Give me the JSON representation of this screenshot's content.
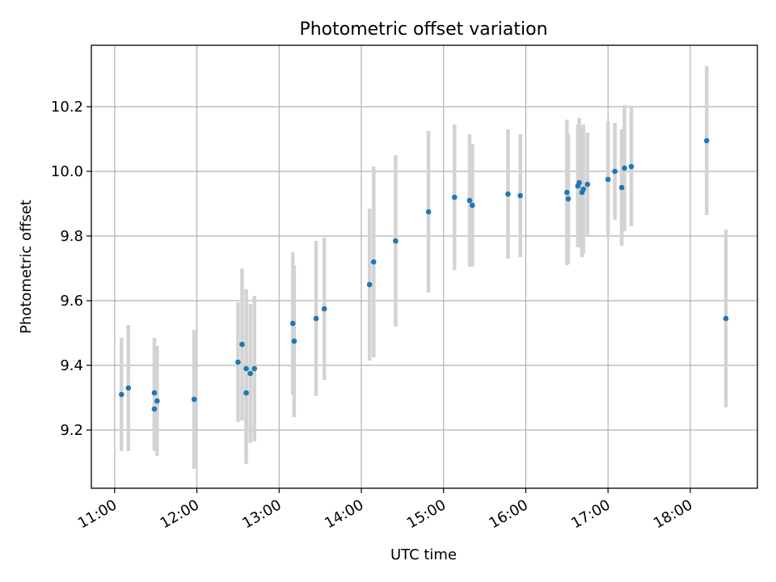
{
  "chart_data": {
    "type": "scatter",
    "title": "Photometric offset variation",
    "xlabel": "UTC time",
    "ylabel": "Photometric offset",
    "x_tick_labels": [
      "11:00",
      "12:00",
      "13:00",
      "14:00",
      "15:00",
      "16:00",
      "17:00",
      "18:00"
    ],
    "y_tick_labels": [
      "9.2",
      "9.4",
      "9.6",
      "9.8",
      "10.0",
      "10.2"
    ],
    "xlim": [
      "10:43",
      "18:49"
    ],
    "ylim": [
      9.02,
      10.39
    ],
    "grid": true,
    "point_color": "#1f77b4",
    "errorbar_color": "#d3d3d3",
    "points": [
      {
        "x": "11:05",
        "y": 9.31,
        "err": 0.175
      },
      {
        "x": "11:10",
        "y": 9.33,
        "err": 0.195
      },
      {
        "x": "11:29",
        "y": 9.315,
        "err": 0.17
      },
      {
        "x": "11:29",
        "y": 9.265,
        "err": 0.13
      },
      {
        "x": "11:31",
        "y": 9.29,
        "err": 0.17
      },
      {
        "x": "11:58",
        "y": 9.295,
        "err": 0.215
      },
      {
        "x": "12:30",
        "y": 9.41,
        "err": 0.185
      },
      {
        "x": "12:33",
        "y": 9.465,
        "err": 0.235
      },
      {
        "x": "12:36",
        "y": 9.39,
        "err": 0.245
      },
      {
        "x": "12:36",
        "y": 9.315,
        "err": 0.22
      },
      {
        "x": "12:39",
        "y": 9.375,
        "err": 0.215
      },
      {
        "x": "12:42",
        "y": 9.39,
        "err": 0.225
      },
      {
        "x": "13:10",
        "y": 9.53,
        "err": 0.22
      },
      {
        "x": "13:11",
        "y": 9.475,
        "err": 0.235
      },
      {
        "x": "13:27",
        "y": 9.545,
        "err": 0.24
      },
      {
        "x": "13:33",
        "y": 9.575,
        "err": 0.22
      },
      {
        "x": "14:06",
        "y": 9.65,
        "err": 0.235
      },
      {
        "x": "14:09",
        "y": 9.72,
        "err": 0.295
      },
      {
        "x": "14:25",
        "y": 9.785,
        "err": 0.265
      },
      {
        "x": "14:49",
        "y": 9.875,
        "err": 0.25
      },
      {
        "x": "15:08",
        "y": 9.92,
        "err": 0.225
      },
      {
        "x": "15:19",
        "y": 9.91,
        "err": 0.205
      },
      {
        "x": "15:21",
        "y": 9.895,
        "err": 0.19
      },
      {
        "x": "15:47",
        "y": 9.93,
        "err": 0.2
      },
      {
        "x": "15:56",
        "y": 9.925,
        "err": 0.19
      },
      {
        "x": "16:30",
        "y": 9.935,
        "err": 0.225
      },
      {
        "x": "16:31",
        "y": 9.915,
        "err": 0.2
      },
      {
        "x": "16:38",
        "y": 9.955,
        "err": 0.19
      },
      {
        "x": "16:39",
        "y": 9.965,
        "err": 0.2
      },
      {
        "x": "16:41",
        "y": 9.935,
        "err": 0.2
      },
      {
        "x": "16:42",
        "y": 9.945,
        "err": 0.2
      },
      {
        "x": "16:45",
        "y": 9.96,
        "err": 0.16
      },
      {
        "x": "17:00",
        "y": 9.975,
        "err": 0.18
      },
      {
        "x": "17:05",
        "y": 10.0,
        "err": 0.15
      },
      {
        "x": "17:10",
        "y": 9.95,
        "err": 0.18
      },
      {
        "x": "17:12",
        "y": 10.01,
        "err": 0.195
      },
      {
        "x": "17:17",
        "y": 10.015,
        "err": 0.185
      },
      {
        "x": "18:12",
        "y": 10.095,
        "err": 0.23
      },
      {
        "x": "18:26",
        "y": 9.545,
        "err": 0.275
      }
    ]
  }
}
